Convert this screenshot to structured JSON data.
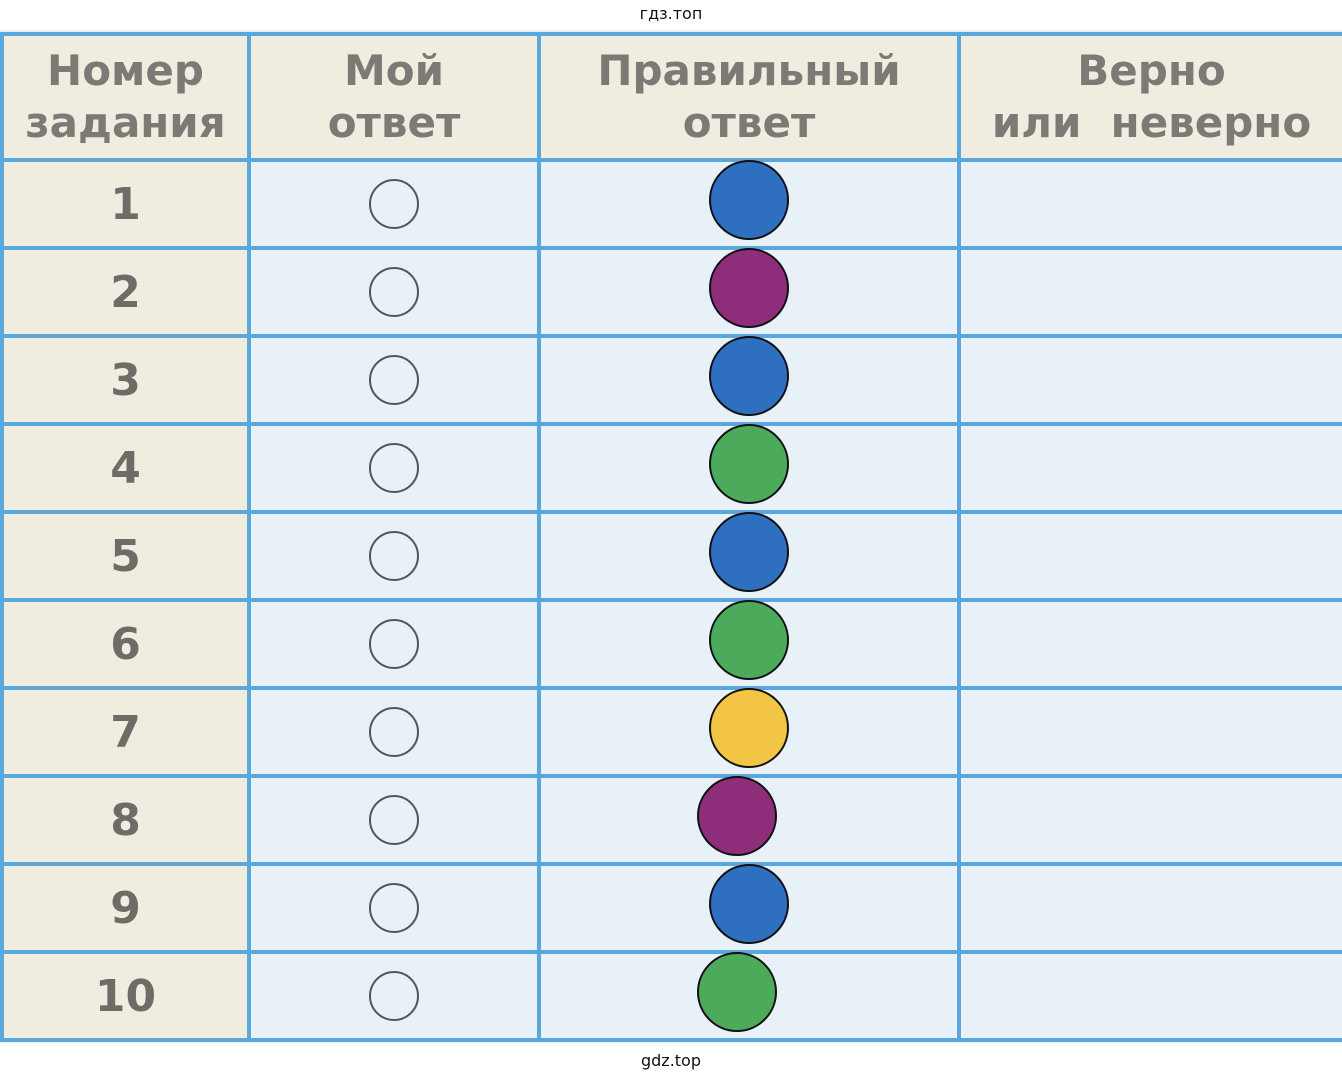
{
  "watermark_top": "гдз.топ",
  "watermark_bottom": "gdz.top",
  "table": {
    "headers": {
      "task_number": [
        "Номер",
        "задания"
      ],
      "my_answer": [
        "Мой",
        "ответ"
      ],
      "correct_answer": [
        "Правильный",
        "ответ"
      ],
      "verdict": [
        "Верно",
        "или  неверно"
      ]
    },
    "rows": [
      {
        "num": "1",
        "correct_color": "#2f6fbf",
        "shift": 0
      },
      {
        "num": "2",
        "correct_color": "#8e2d7a",
        "shift": 0
      },
      {
        "num": "3",
        "correct_color": "#2f6fbf",
        "shift": 0
      },
      {
        "num": "4",
        "correct_color": "#4caa5a",
        "shift": 0
      },
      {
        "num": "5",
        "correct_color": "#2f6fbf",
        "shift": 0
      },
      {
        "num": "6",
        "correct_color": "#4caa5a",
        "shift": 0
      },
      {
        "num": "7",
        "correct_color": "#f2c544",
        "shift": 0
      },
      {
        "num": "8",
        "correct_color": "#8e2d7a",
        "shift": -12
      },
      {
        "num": "9",
        "correct_color": "#2f6fbf",
        "shift": 0
      },
      {
        "num": "10",
        "correct_color": "#4caa5a",
        "shift": -12
      }
    ]
  },
  "colors": {
    "grid_lines": "#5aa7dc",
    "header_bg": "#f1ece0",
    "cell_bg": "#e9f1f8",
    "blue": "#2f6fbf",
    "purple": "#8e2d7a",
    "green": "#4caa5a",
    "yellow": "#f2c544"
  }
}
